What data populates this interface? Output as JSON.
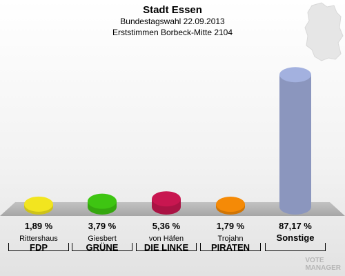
{
  "header": {
    "title": "Stadt Essen",
    "subtitle": "Bundestagswahl 22.09.2013",
    "subtitle2": "Erststimmen Borbeck-Mitte 2104"
  },
  "chart_data": {
    "type": "bar",
    "categories": [
      "FDP",
      "GRÜNE",
      "DIE LINKE",
      "PIRATEN",
      "Sonstige"
    ],
    "candidates": [
      "Rittershaus",
      "Giesbert",
      "von Häfen",
      "Trojahn",
      ""
    ],
    "values": [
      1.89,
      3.79,
      5.36,
      1.79,
      87.17
    ],
    "value_labels": [
      "1,89 %",
      "3,79 %",
      "5,36 %",
      "1,79 %",
      "87,17 %"
    ],
    "colors": [
      "#f2e51f",
      "#3ec512",
      "#c81650",
      "#f58a06",
      "#a3b1df"
    ],
    "ylim": [
      0,
      100
    ]
  },
  "logo": {
    "text_line1": "VOTE",
    "text_line2": "MANAGER",
    "icon": "vote-manager-logo-icon"
  },
  "map": {
    "icon": "germany-map-icon"
  }
}
